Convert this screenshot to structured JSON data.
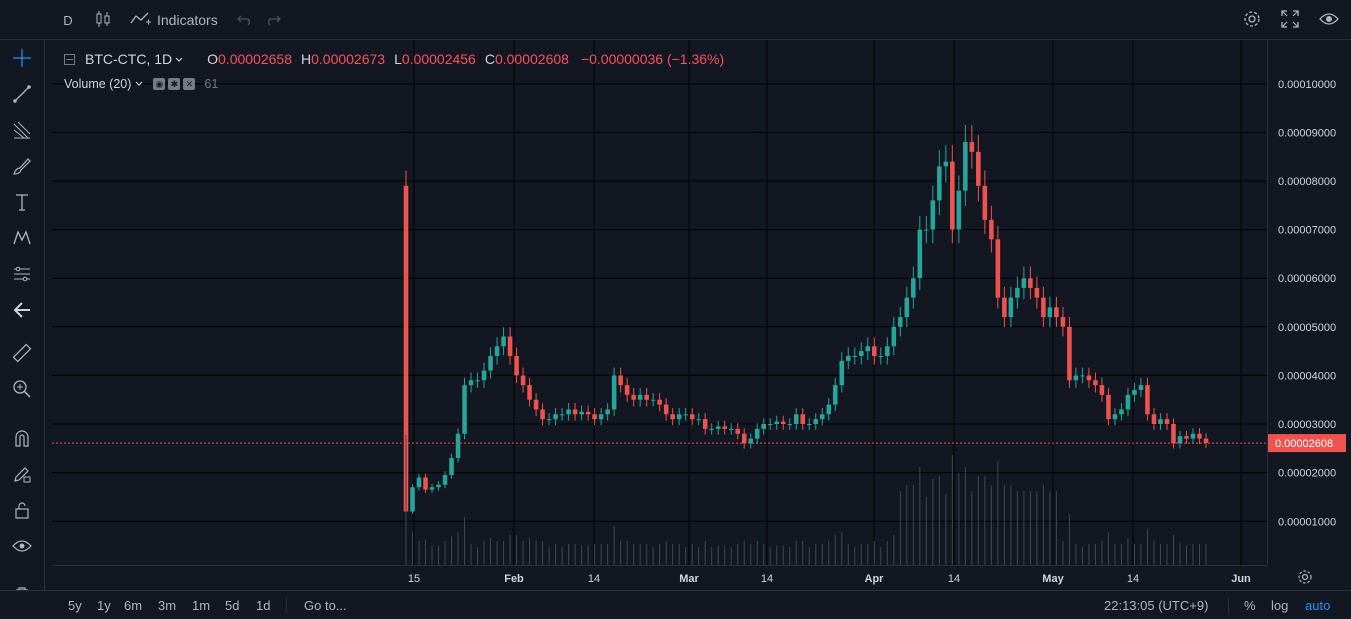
{
  "toolbar": {
    "interval": "D",
    "indicators_label": "Indicators"
  },
  "legend": {
    "symbol": "BTC-CTC, 1D",
    "open_label": "O",
    "open_value": "0.00002658",
    "high_label": "H",
    "high_value": "0.00002673",
    "low_label": "L",
    "low_value": "0.00002456",
    "close_label": "C",
    "close_value": "0.00002608",
    "change": "−0.00000036 (−1.36%)",
    "volume_label": "Volume (20)",
    "volume_value": "61"
  },
  "price_axis": {
    "labels": [
      "0.00010000",
      "0.00009000",
      "0.00008000",
      "0.00007000",
      "0.00006000",
      "0.00005000",
      "0.00004000",
      "0.00003000",
      "0.00002000",
      "0.00001000"
    ],
    "current_price": "0.00002608"
  },
  "time_axis": {
    "labels": [
      "15",
      "Feb",
      "14",
      "Mar",
      "14",
      "Apr",
      "14",
      "May",
      "14",
      "Jun"
    ]
  },
  "bottombar": {
    "ranges": [
      "5y",
      "1y",
      "6m",
      "3m",
      "1m",
      "5d",
      "1d"
    ],
    "goto": "Go to...",
    "clock": "22:13:05 (UTC+9)",
    "percent": "%",
    "log": "log",
    "auto": "auto"
  },
  "colors": {
    "background": "#131722",
    "up": "#26a69a",
    "down": "#ef5350",
    "grid": "#000000",
    "price_line": "#ef5350",
    "volume": "#434651"
  },
  "chart_data": {
    "type": "candlestick",
    "y_range": [
      1e-06,
      0.000109
    ],
    "series_open": [
      7.9e-05,
      1.2e-05,
      1.7e-05,
      1.9e-05,
      1.65e-05,
      1.7e-05,
      1.75e-05,
      1.95e-05,
      2.3e-05,
      2.8e-05,
      3.8e-05,
      3.9e-05,
      3.9e-05,
      4.1e-05,
      4.4e-05,
      4.6e-05,
      4.8e-05,
      4.4e-05,
      4e-05,
      3.8e-05,
      3.5e-05,
      3.3e-05,
      3.1e-05,
      3.1e-05,
      3.2e-05,
      3.2e-05,
      3.3e-05,
      3.2e-05,
      3.25e-05,
      3.2e-05,
      3.1e-05,
      3.2e-05,
      3.3e-05,
      4e-05,
      3.8e-05,
      3.6e-05,
      3.5e-05,
      3.6e-05,
      3.5e-05,
      3.5e-05,
      3.4e-05,
      3.2e-05,
      3.1e-05,
      3.2e-05,
      3.2e-05,
      3.1e-05,
      3.1e-05,
      2.9e-05,
      2.9e-05,
      2.95e-05,
      2.9e-05,
      2.9e-05,
      2.8e-05,
      2.6e-05,
      2.7e-05,
      2.9e-05,
      3e-05,
      3e-05,
      3.05e-05,
      3e-05,
      3e-05,
      3.2e-05,
      3e-05,
      3e-05,
      3.1e-05,
      3.2e-05,
      3.4e-05,
      3.8e-05,
      4.3e-05,
      4.4e-05,
      4.4e-05,
      4.5e-05,
      4.6e-05,
      4.4e-05,
      4.4e-05,
      4.6e-05,
      5e-05,
      5.2e-05,
      5.6e-05,
      6e-05,
      7e-05,
      7e-05,
      7.6e-05,
      8.3e-05,
      8.4e-05,
      7e-05,
      7.8e-05,
      8.8e-05,
      8.6e-05,
      7.9e-05,
      7.2e-05,
      6.8e-05,
      5.6e-05,
      5.2e-05,
      5.6e-05,
      5.8e-05,
      6e-05,
      5.8e-05,
      5.6e-05,
      5.2e-05,
      5.4e-05,
      5.2e-05,
      5e-05,
      3.9e-05,
      4e-05,
      4e-05,
      3.9e-05,
      3.8e-05,
      3.6e-05,
      3.1e-05,
      3.2e-05,
      3.3e-05,
      3.6e-05,
      3.7e-05,
      3.8e-05,
      3.2e-05,
      3e-05,
      3.1e-05,
      3e-05,
      2.6e-05,
      2.75e-05,
      2.7e-05,
      2.8e-05,
      2.7e-05
    ],
    "series_close": [
      1.2e-05,
      1.7e-05,
      1.9e-05,
      1.65e-05,
      1.7e-05,
      1.75e-05,
      1.95e-05,
      2.3e-05,
      2.8e-05,
      3.8e-05,
      3.9e-05,
      3.9e-05,
      4.1e-05,
      4.4e-05,
      4.6e-05,
      4.8e-05,
      4.4e-05,
      4e-05,
      3.8e-05,
      3.5e-05,
      3.3e-05,
      3.1e-05,
      3.1e-05,
      3.2e-05,
      3.2e-05,
      3.3e-05,
      3.2e-05,
      3.25e-05,
      3.2e-05,
      3.1e-05,
      3.2e-05,
      3.3e-05,
      4e-05,
      3.8e-05,
      3.6e-05,
      3.5e-05,
      3.6e-05,
      3.5e-05,
      3.5e-05,
      3.4e-05,
      3.2e-05,
      3.1e-05,
      3.2e-05,
      3.2e-05,
      3.1e-05,
      3.1e-05,
      2.9e-05,
      2.9e-05,
      2.95e-05,
      2.9e-05,
      2.9e-05,
      2.8e-05,
      2.6e-05,
      2.7e-05,
      2.9e-05,
      3e-05,
      3e-05,
      3.05e-05,
      3e-05,
      3e-05,
      3.2e-05,
      3e-05,
      3e-05,
      3.1e-05,
      3.2e-05,
      3.4e-05,
      3.8e-05,
      4.3e-05,
      4.4e-05,
      4.4e-05,
      4.5e-05,
      4.6e-05,
      4.4e-05,
      4.4e-05,
      4.6e-05,
      5e-05,
      5.2e-05,
      5.6e-05,
      6e-05,
      7e-05,
      7e-05,
      7.6e-05,
      8.3e-05,
      8.4e-05,
      7e-05,
      7.8e-05,
      8.8e-05,
      8.6e-05,
      7.9e-05,
      7.2e-05,
      6.8e-05,
      5.6e-05,
      5.2e-05,
      5.6e-05,
      5.8e-05,
      6e-05,
      5.8e-05,
      5.6e-05,
      5.2e-05,
      5.4e-05,
      5.2e-05,
      5e-05,
      3.9e-05,
      4e-05,
      4e-05,
      3.9e-05,
      3.8e-05,
      3.6e-05,
      3.1e-05,
      3.2e-05,
      3.3e-05,
      3.6e-05,
      3.7e-05,
      3.8e-05,
      3.2e-05,
      3e-05,
      3.1e-05,
      3e-05,
      2.6e-05,
      2.75e-05,
      2.7e-05,
      2.8e-05,
      2.7e-05,
      2.61e-05
    ]
  }
}
